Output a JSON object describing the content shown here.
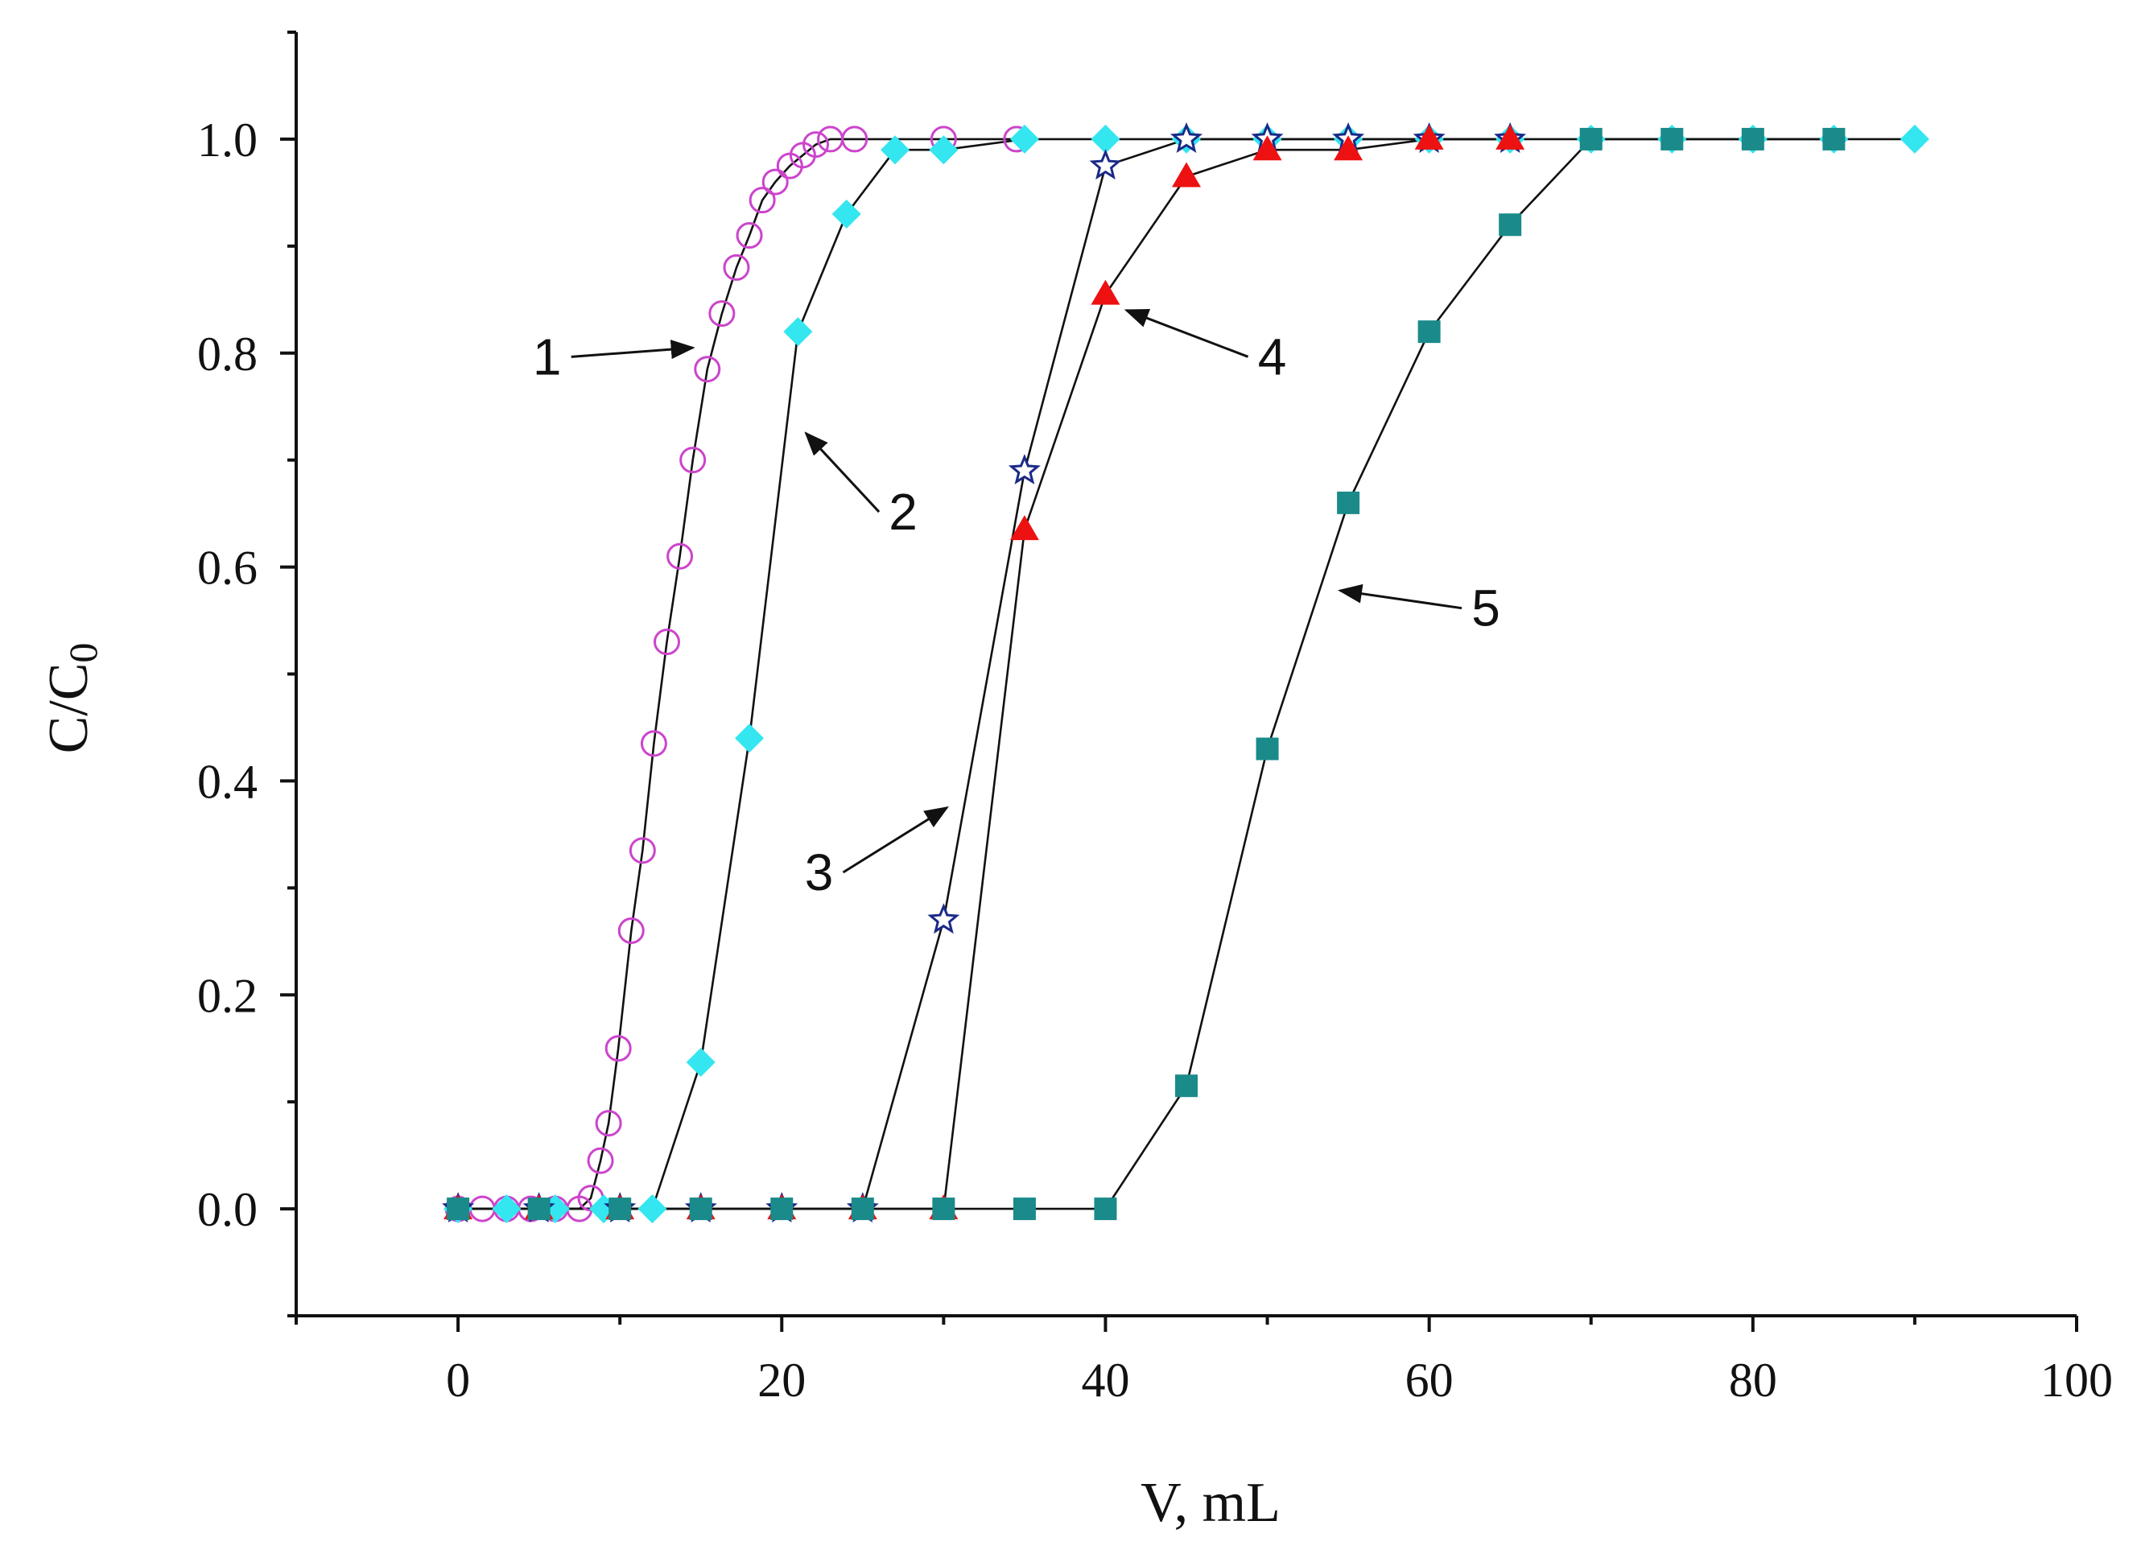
{
  "chart_data": {
    "type": "line",
    "title": "",
    "xlabel": "V, mL",
    "ylabel_main": "C/C",
    "ylabel_sub": "0",
    "xlim": [
      -10,
      100
    ],
    "ylim": [
      -0.1,
      1.1
    ],
    "xticks": [
      0,
      20,
      40,
      60,
      80,
      100
    ],
    "yticks": [
      0.0,
      0.2,
      0.4,
      0.6,
      0.8,
      1.0
    ],
    "xtick_labels": [
      "0",
      "20",
      "40",
      "60",
      "80",
      "100"
    ],
    "ytick_labels": [
      "0.0",
      "0.2",
      "0.4",
      "0.6",
      "0.8",
      "1.0"
    ],
    "grid": false,
    "series": [
      {
        "name": "1",
        "marker": "circle-open",
        "color": "#cc44cc",
        "points": [
          [
            0,
            0
          ],
          [
            1.5,
            0
          ],
          [
            3,
            0
          ],
          [
            4.5,
            0
          ],
          [
            6,
            0
          ],
          [
            7.5,
            0
          ],
          [
            8.2,
            0.01
          ],
          [
            8.8,
            0.045
          ],
          [
            9.3,
            0.08
          ],
          [
            9.9,
            0.15
          ],
          [
            10.7,
            0.26
          ],
          [
            11.4,
            0.335
          ],
          [
            12.1,
            0.435
          ],
          [
            12.9,
            0.53
          ],
          [
            13.7,
            0.61
          ],
          [
            14.5,
            0.7
          ],
          [
            15.4,
            0.785
          ],
          [
            16.3,
            0.837
          ],
          [
            17.2,
            0.88
          ],
          [
            18.0,
            0.91
          ],
          [
            18.8,
            0.943
          ],
          [
            19.6,
            0.96
          ],
          [
            20.5,
            0.975
          ],
          [
            21.3,
            0.985
          ],
          [
            22.1,
            0.995
          ],
          [
            23.0,
            1.0
          ],
          [
            24.5,
            1.0
          ],
          [
            30.0,
            1.0
          ],
          [
            34.5,
            1.0
          ]
        ]
      },
      {
        "name": "2",
        "marker": "diamond-filled",
        "color": "#33e6f0",
        "points": [
          [
            0,
            0
          ],
          [
            3,
            0
          ],
          [
            6,
            0
          ],
          [
            9,
            0
          ],
          [
            12,
            0
          ],
          [
            15,
            0.137
          ],
          [
            18,
            0.44
          ],
          [
            21,
            0.82
          ],
          [
            24,
            0.93
          ],
          [
            27,
            0.99
          ],
          [
            30,
            0.99
          ],
          [
            35,
            1.0
          ],
          [
            40,
            1.0
          ],
          [
            45,
            1.0
          ],
          [
            50,
            1.0
          ],
          [
            55,
            1.0
          ],
          [
            60,
            1.0
          ],
          [
            65,
            1.0
          ],
          [
            70,
            1.0
          ],
          [
            75,
            1.0
          ],
          [
            80,
            1.0
          ],
          [
            85,
            1.0
          ],
          [
            90,
            1.0
          ]
        ]
      },
      {
        "name": "3",
        "marker": "star-open",
        "color": "#1a2a88",
        "points": [
          [
            0,
            0
          ],
          [
            5,
            0
          ],
          [
            10,
            0
          ],
          [
            15,
            0
          ],
          [
            20,
            0
          ],
          [
            25,
            0
          ],
          [
            30,
            0.27
          ],
          [
            35,
            0.69
          ],
          [
            40,
            0.975
          ],
          [
            45,
            1.0
          ],
          [
            50,
            1.0
          ],
          [
            55,
            1.0
          ],
          [
            60,
            1.0
          ],
          [
            65,
            1.0
          ]
        ]
      },
      {
        "name": "4",
        "marker": "triangle-filled",
        "color": "#ee1111",
        "points": [
          [
            0,
            0
          ],
          [
            5,
            0
          ],
          [
            10,
            0
          ],
          [
            15,
            0
          ],
          [
            20,
            0
          ],
          [
            25,
            0
          ],
          [
            30,
            0
          ],
          [
            35,
            0.635
          ],
          [
            40,
            0.855
          ],
          [
            45,
            0.965
          ],
          [
            50,
            0.99
          ],
          [
            55,
            0.99
          ],
          [
            60,
            1.0
          ],
          [
            65,
            1.0
          ]
        ]
      },
      {
        "name": "5",
        "marker": "square-filled",
        "color": "#1a8a8a",
        "points": [
          [
            0,
            0
          ],
          [
            5,
            0
          ],
          [
            10,
            0
          ],
          [
            15,
            0
          ],
          [
            20,
            0
          ],
          [
            25,
            0
          ],
          [
            30,
            0
          ],
          [
            35,
            0
          ],
          [
            40,
            0
          ],
          [
            45,
            0.115
          ],
          [
            50,
            0.43
          ],
          [
            55,
            0.66
          ],
          [
            60,
            0.82
          ],
          [
            65,
            0.92
          ],
          [
            70,
            1.0
          ],
          [
            75,
            1.0
          ],
          [
            80,
            1.0
          ],
          [
            85,
            1.0
          ]
        ]
      }
    ],
    "annotations": [
      {
        "text": "1",
        "text_at": [
          5.5,
          0.78
        ],
        "arrow_to": [
          14.5,
          0.805
        ]
      },
      {
        "text": "2",
        "text_at": [
          27.5,
          0.635
        ],
        "arrow_to": [
          21.5,
          0.725
        ]
      },
      {
        "text": "3",
        "text_at": [
          22.3,
          0.298
        ],
        "arrow_to": [
          30.2,
          0.375
        ]
      },
      {
        "text": "4",
        "text_at": [
          50.3,
          0.78
        ],
        "arrow_to": [
          41.3,
          0.84
        ]
      },
      {
        "text": "5",
        "text_at": [
          63.5,
          0.545
        ],
        "arrow_to": [
          54.5,
          0.578
        ]
      }
    ]
  }
}
